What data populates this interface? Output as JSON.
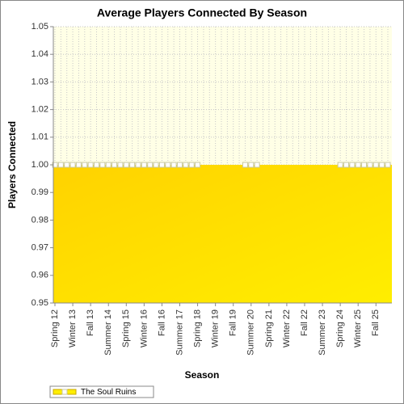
{
  "chart_data": {
    "type": "area",
    "title": "Average Players Connected By Season",
    "x_label": "Season",
    "y_label": "Players Connected",
    "categories": [
      "Spring 12",
      null,
      null,
      "Winter 13",
      null,
      null,
      "Fall 13",
      null,
      null,
      "Summer 14",
      null,
      null,
      "Spring 15",
      null,
      null,
      "Winter 16",
      null,
      null,
      "Fall 16",
      null,
      null,
      "Summer 17",
      null,
      null,
      "Spring 18",
      null,
      null,
      "Winter 19",
      null,
      null,
      "Fall 19",
      null,
      null,
      "Summer 20",
      null,
      null,
      "Spring 21",
      null,
      null,
      "Winter 22",
      null,
      null,
      "Fall 22",
      null,
      null,
      "Summer 23",
      null,
      null,
      "Spring 24",
      null,
      null,
      "Winter 25",
      null,
      null,
      "Fall 25",
      null,
      null
    ],
    "series": [
      {
        "name": "The Soul Ruins",
        "color": "#ffee00",
        "values": [
          1,
          1,
          1,
          1,
          1,
          1,
          1,
          1,
          1,
          1,
          1,
          1,
          1,
          1,
          1,
          1,
          1,
          1,
          1,
          1,
          1,
          1,
          1,
          1,
          1,
          null,
          null,
          null,
          null,
          null,
          null,
          null,
          1,
          1,
          1,
          null,
          null,
          null,
          null,
          null,
          null,
          null,
          null,
          null,
          null,
          null,
          null,
          null,
          1,
          1,
          1,
          1,
          1,
          1,
          1,
          1,
          1
        ]
      }
    ],
    "ylim": [
      0.95,
      1.05
    ],
    "yticks": [
      0.95,
      0.96,
      0.97,
      0.98,
      0.99,
      {
        "value": 1,
        "label": "1.00"
      },
      1.01,
      1.02,
      1.03,
      1.04,
      1.05
    ],
    "grid": true,
    "legend": "bottom-left"
  }
}
